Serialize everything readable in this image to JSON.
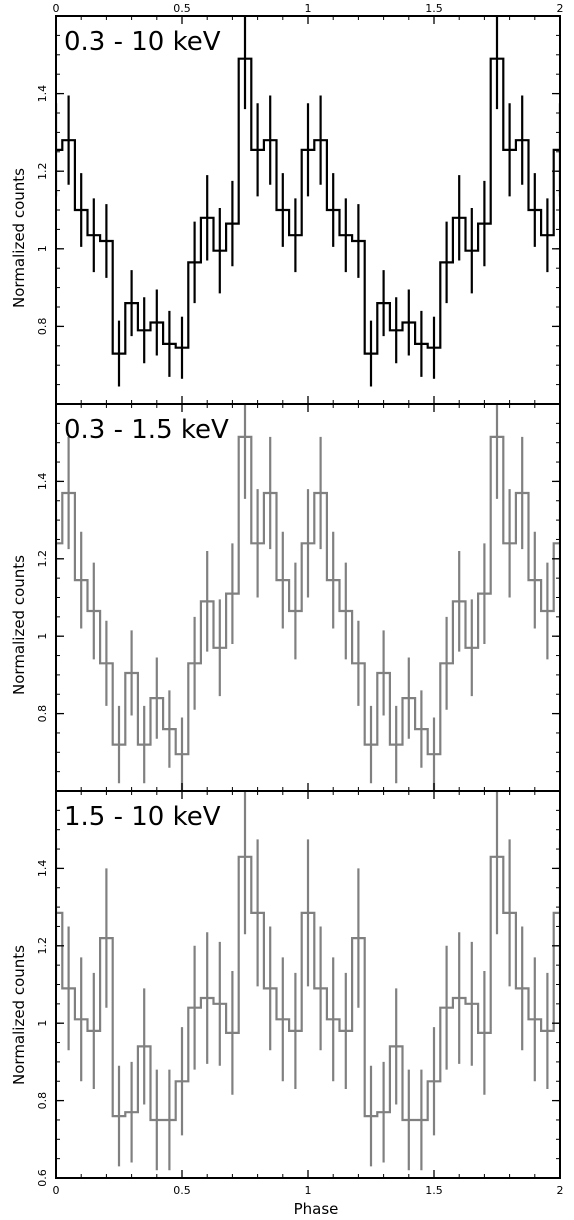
{
  "chart_data": {
    "type": "line",
    "style": "step histogram with error bars",
    "xlabel": "Phase",
    "ylabel": "Normalized counts",
    "xlim": [
      0,
      2
    ],
    "x_ticks": [
      0,
      0.5,
      1,
      1.5,
      2
    ],
    "x_tick_labels": [
      "0",
      "0.5",
      "1",
      "1.5",
      "2"
    ],
    "x_ticks_top": true,
    "bins_per_cycle": 20,
    "bin_width": 0.05,
    "grid": false,
    "legend": "none",
    "panels": [
      {
        "label": "0.3 - 10 keV",
        "color": "#000000",
        "ylim": [
          0.6,
          1.6
        ],
        "y_ticks": [
          0.8,
          1,
          1.2,
          1.4
        ],
        "y_tick_labels": [
          "0.8",
          "1",
          "1.2",
          "1.4"
        ],
        "values": [
          1.255,
          1.28,
          1.1,
          1.035,
          1.02,
          0.73,
          0.86,
          0.79,
          0.81,
          0.755,
          0.745,
          0.965,
          1.08,
          0.995,
          1.065,
          1.49
        ],
        "errors": [
          0.12,
          0.115,
          0.095,
          0.095,
          0.095,
          0.085,
          0.085,
          0.085,
          0.085,
          0.085,
          0.08,
          0.105,
          0.11,
          0.11,
          0.11,
          0.13
        ]
      },
      {
        "label": "0.3 - 1.5 keV",
        "color": "#808080",
        "ylim": [
          0.6,
          1.6
        ],
        "y_ticks": [
          0.8,
          1,
          1.2,
          1.4
        ],
        "y_tick_labels": [
          "0.8",
          "1",
          "1.2",
          "1.4"
        ],
        "values": [
          1.24,
          1.37,
          1.145,
          1.065,
          0.93,
          0.72,
          0.905,
          0.72,
          0.84,
          0.76,
          0.695,
          0.93,
          1.09,
          0.97,
          1.11,
          1.515
        ],
        "errors": [
          0.14,
          0.145,
          0.125,
          0.125,
          0.11,
          0.1,
          0.11,
          0.1,
          0.105,
          0.1,
          0.095,
          0.12,
          0.13,
          0.125,
          0.13,
          0.16
        ]
      },
      {
        "label": "1.5 - 10 keV",
        "color": "#808080",
        "ylim": [
          0.6,
          1.6
        ],
        "y_ticks": [
          0.6,
          0.8,
          1,
          1.2,
          1.4
        ],
        "y_tick_labels": [
          "0.6",
          "0.8",
          "1",
          "1.2",
          "1.4"
        ],
        "values": [
          1.285,
          1.09,
          1.01,
          0.98,
          1.22,
          0.76,
          0.77,
          0.94,
          0.75,
          0.75,
          0.85,
          1.04,
          1.065,
          1.05,
          0.975,
          1.43
        ],
        "errors": [
          0.19,
          0.16,
          0.16,
          0.15,
          0.18,
          0.13,
          0.13,
          0.15,
          0.13,
          0.13,
          0.14,
          0.16,
          0.17,
          0.16,
          0.16,
          0.2
        ]
      }
    ]
  }
}
